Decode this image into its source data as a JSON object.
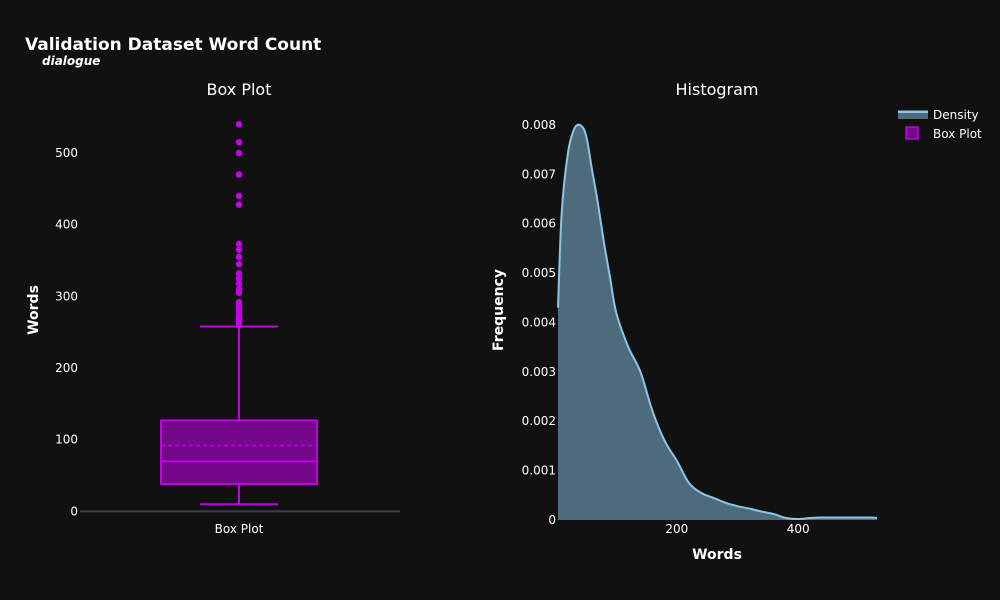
{
  "title": "Validation Dataset Word Count",
  "subtitle": "dialogue",
  "colors": {
    "background": "#111111",
    "box": "#c300e6",
    "box_fill": "#74078a",
    "density_line": "#8ec5e6",
    "density_fill": "#4d6b7a",
    "zero_line": "#3a3f4b"
  },
  "legend": {
    "items": [
      {
        "label": "Density",
        "kind": "line"
      },
      {
        "label": "Box Plot",
        "kind": "box"
      }
    ]
  },
  "chart_data": [
    {
      "type": "box",
      "title": "Box Plot",
      "xlabel": "",
      "ylabel": "Words",
      "categories": [
        "Box Plot"
      ],
      "ylim": [
        -12,
        560
      ],
      "yticks": [
        0,
        100,
        200,
        300,
        400,
        500
      ],
      "stats": {
        "lowerfence": 10,
        "q1": 38,
        "median": 70,
        "mean": 92,
        "q3": 127,
        "upperfence": 258
      },
      "outliers": [
        262,
        266,
        268,
        270,
        272,
        275,
        280,
        285,
        288,
        292,
        305,
        310,
        318,
        325,
        332,
        345,
        355,
        365,
        373,
        428,
        440,
        470,
        500,
        515,
        540
      ]
    },
    {
      "type": "area",
      "title": "Histogram",
      "xlabel": "Words",
      "ylabel": "Frequency",
      "series": [
        {
          "name": "Density",
          "x": [
            4,
            10,
            20,
            30,
            40,
            50,
            60,
            70,
            80,
            90,
            100,
            120,
            140,
            160,
            180,
            200,
            220,
            240,
            260,
            280,
            300,
            320,
            340,
            360,
            380,
            400,
            420,
            440,
            460,
            480,
            500,
            520,
            530
          ],
          "y": [
            0.0043,
            0.0062,
            0.0074,
            0.0079,
            0.008,
            0.0078,
            0.0071,
            0.0064,
            0.0056,
            0.0049,
            0.0042,
            0.0035,
            0.003,
            0.0022,
            0.0016,
            0.0012,
            0.00075,
            0.00055,
            0.00045,
            0.00035,
            0.00028,
            0.00023,
            0.00017,
            0.00012,
            4e-05,
            2e-05,
            4e-05,
            5e-05,
            5e-05,
            5e-05,
            5e-05,
            5e-05,
            4e-05
          ]
        }
      ],
      "xlim": [
        4,
        530
      ],
      "xticks": [
        200,
        400
      ],
      "ylim": [
        0,
        0.0081
      ],
      "yticks": [
        0,
        0.001,
        0.002,
        0.003,
        0.004,
        0.005,
        0.006,
        0.007,
        0.008
      ],
      "ytick_labels": [
        "0",
        "0.001",
        "0.002",
        "0.003",
        "0.004",
        "0.005",
        "0.006",
        "0.007",
        "0.008"
      ]
    }
  ]
}
